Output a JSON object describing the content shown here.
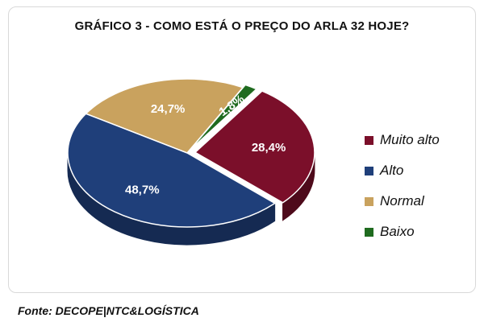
{
  "chart_data": {
    "type": "pie",
    "title": "GRÁFICO 3 - COMO ESTÁ O PREÇO DO ARLA 32 HOJE?",
    "slices": [
      {
        "label": "Muito alto",
        "value": 28.4,
        "display": "28,4%",
        "color": "#7b0f2a",
        "side": "#4e0a1b"
      },
      {
        "label": "Alto",
        "value": 48.7,
        "display": "48,7%",
        "color": "#1f3f7a",
        "side": "#152a52"
      },
      {
        "label": "Normal",
        "value": 24.7,
        "display": "24,7%",
        "color": "#c9a25e",
        "side": "#8c6f3c"
      },
      {
        "label": "Baixo",
        "value": 1.8,
        "display": "1,8%",
        "color": "#1f6b1f",
        "side": "#144814"
      }
    ],
    "legend_position": "right"
  },
  "source": "Fonte: DECOPE|NTC&LOGÍSTICA"
}
